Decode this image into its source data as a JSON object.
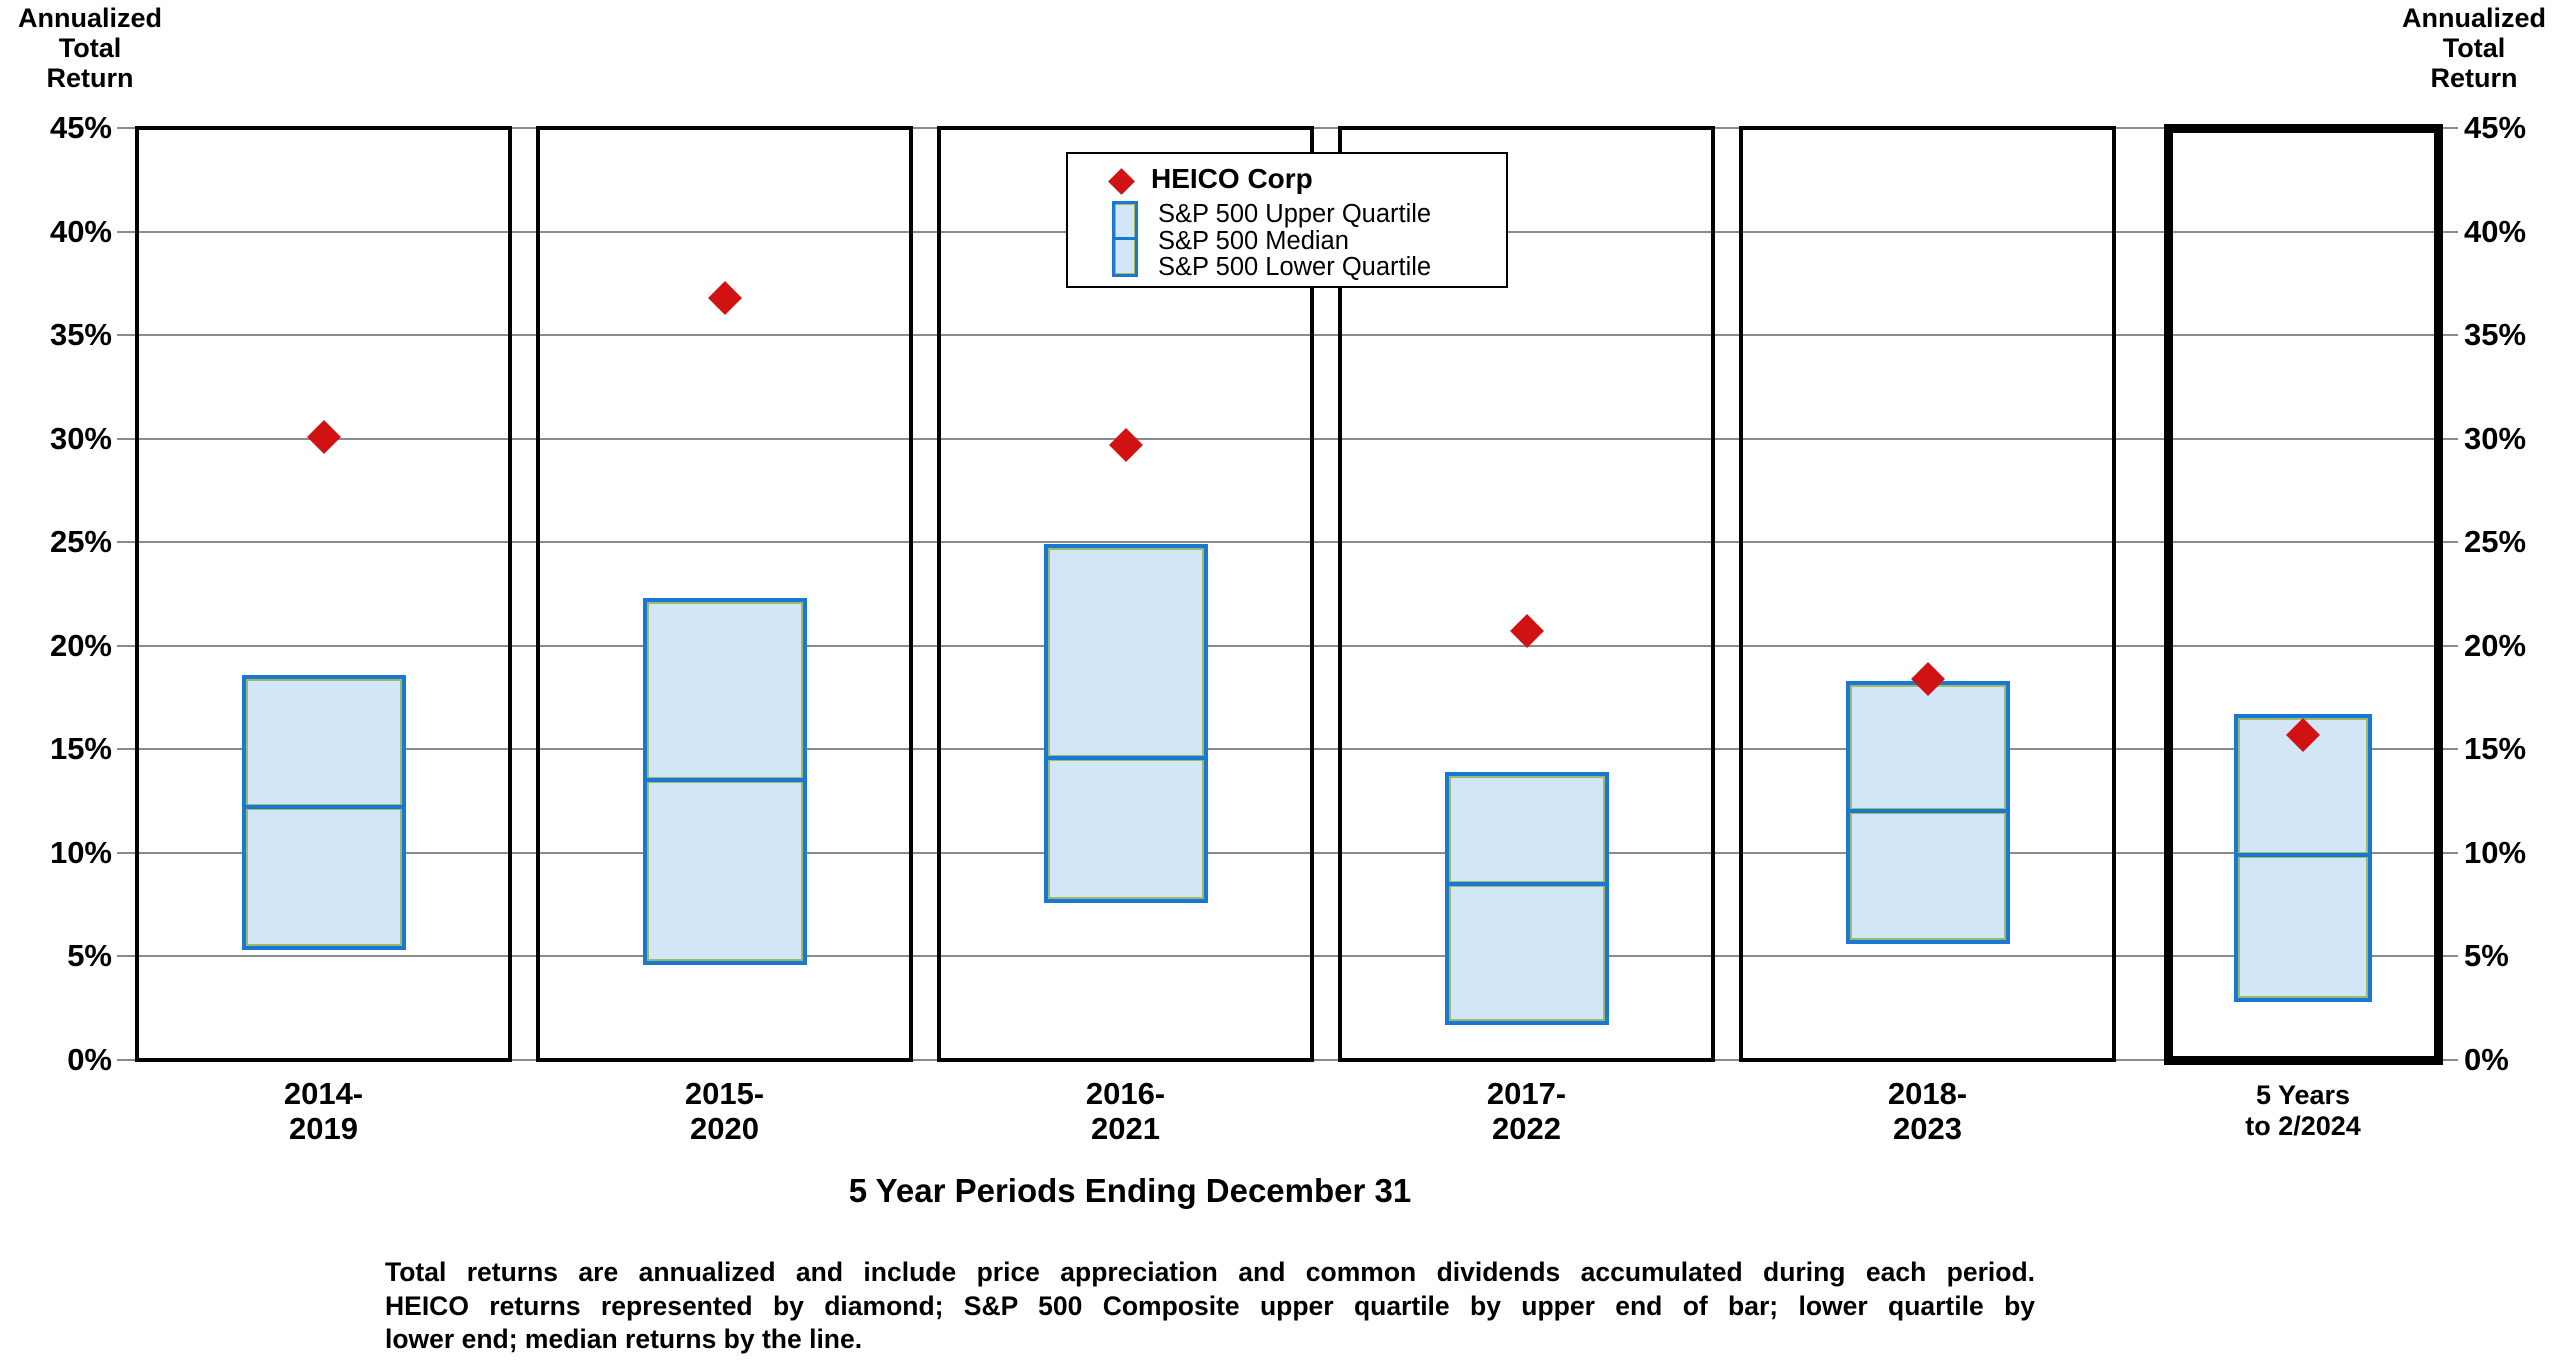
{
  "axis": {
    "left_title": "Annualized\nTotal\nReturn",
    "right_title": "Annualized\nTotal\nReturn"
  },
  "legend": {
    "heico": "HEICO Corp",
    "upper": "S&P 500 Upper Quartile",
    "median": "S&P 500 Median",
    "lower": "S&P 500 Lower Quartile"
  },
  "xaxis": {
    "title": "5 Year Periods Ending December 31"
  },
  "footnote": {
    "lines": [
      "Total returns are annualized and include price appreciation and common dividends accumulated during each period.",
      "HEICO returns represented by diamond; S&P 500 Composite upper quartile by upper end of bar; lower quartile by",
      "lower end; median returns by the line."
    ]
  },
  "chart_data": {
    "type": "box-with-marker",
    "title": "",
    "xlabel": "5 Year Periods Ending December 31",
    "ylabel": "Annualized Total Return",
    "yaxis": {
      "min": 0,
      "max": 45,
      "step": 5,
      "tick_format": "{v}%"
    },
    "grid": true,
    "legend_position": "top-center",
    "colors": {
      "heico_marker": "#d11212",
      "box_fill": "#d2e6f8",
      "box_border": "#1878d2",
      "gridline": "#8a8a8a"
    },
    "periods": [
      {
        "label": "2014-\n2019",
        "heico": 30.1,
        "upper_quartile": 18.5,
        "median": 12.2,
        "lower_quartile": 5.4,
        "highlight_frame": false
      },
      {
        "label": "2015-\n2020",
        "heico": 36.8,
        "upper_quartile": 22.2,
        "median": 13.5,
        "lower_quartile": 4.7,
        "highlight_frame": false
      },
      {
        "label": "2016-\n2021",
        "heico": 29.7,
        "upper_quartile": 24.8,
        "median": 14.6,
        "lower_quartile": 7.7,
        "highlight_frame": false
      },
      {
        "label": "2017-\n2022",
        "heico": 20.7,
        "upper_quartile": 13.8,
        "median": 8.5,
        "lower_quartile": 1.8,
        "highlight_frame": false
      },
      {
        "label": "2018-\n2023",
        "heico": 18.4,
        "upper_quartile": 18.2,
        "median": 12.0,
        "lower_quartile": 5.7,
        "highlight_frame": false
      },
      {
        "label": "5 Years\nto  2/2024",
        "heico": 15.7,
        "upper_quartile": 16.6,
        "median": 9.9,
        "lower_quartile": 2.9,
        "highlight_frame": true
      }
    ]
  }
}
